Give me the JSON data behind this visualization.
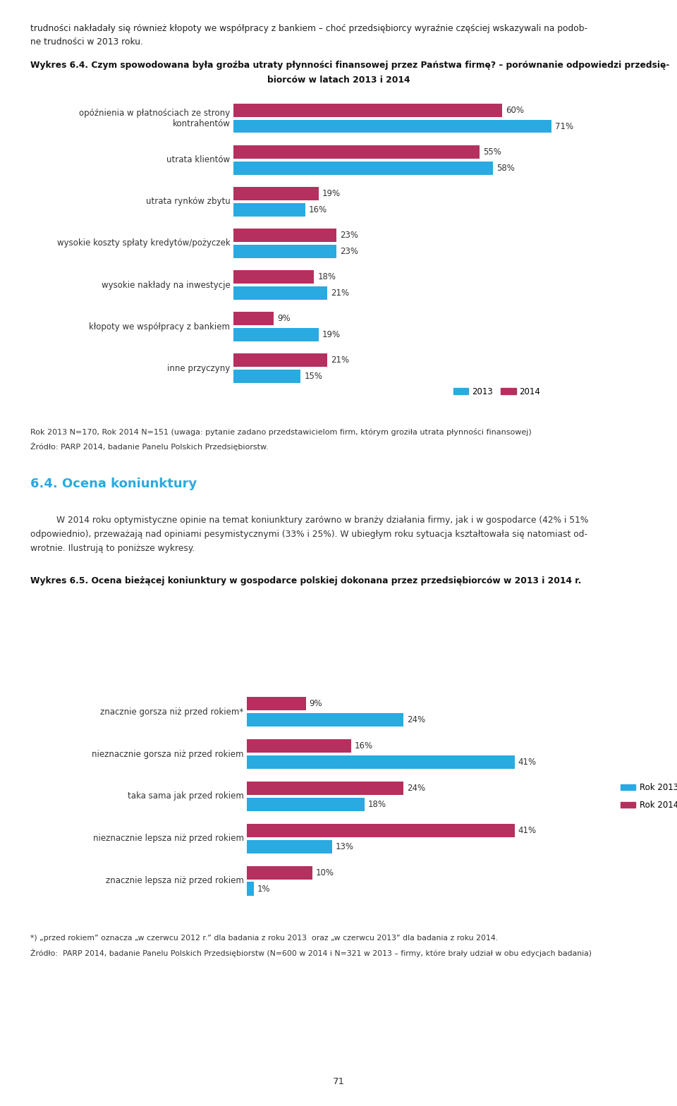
{
  "page_bg": "#ffffff",
  "top_text_line1": "trudności nakładały się również kłopoty we współpracy z bankiem – choć przedsiębiorcy wyraźnie częściej wskazywali na podob-",
  "top_text_line2": "ne trudności w 2013 roku.",
  "chart1_title_line1": "Wykres 6.4. Czym spowodowana była groźba utraty płynności finansowej przez Państwa firmę? – porównanie odpowiedzi przedsię-",
  "chart1_title_line2": "biorców w latach 2013 i 2014",
  "chart1_categories": [
    "opóźnienia w płatnościach ze strony\nkontrahentów",
    "utrata klientów",
    "utrata rynków zbytu",
    "wysokie koszty spłaty kredytów/pożyczek",
    "wysokie nakłady na inwestycje",
    "kłopoty we współpracy z bankiem",
    "inne przyczyny"
  ],
  "chart1_values_2013": [
    71,
    58,
    16,
    23,
    21,
    19,
    15
  ],
  "chart1_values_2014": [
    60,
    55,
    19,
    23,
    18,
    9,
    21
  ],
  "chart1_color_2013": "#29aae1",
  "chart1_color_2014": "#b5305e",
  "chart1_legend_2013": "2013",
  "chart1_legend_2014": "2014",
  "chart1_footnote1": "Rok 2013 N=170, Rok 2014 N=151 (uwaga: pytanie zadano przedstawicielom firm, którym groziła utrata płynności finansowej)",
  "chart1_footnote2": "Źródło: PARP 2014, badanie Panelu Polskich Przedsiębiorstw.",
  "section_title": "6.4. Ocena koniunktury",
  "section_text_line1": "W 2014 roku optymistyczne opinie na temat koniunktury zarówno w branży działania firmy, jak i w gospodarce (42% i 51%",
  "section_text_line2": "odpowiednio), przeważają nad opiniami pesymistycznymi (33% i 25%). W ubiegłym roku sytuacja kształtowała się natomiast od-",
  "section_text_line3": "wrotnie. Ilustrują to poniższe wykresy.",
  "chart2_title": "Wykres 6.5. Ocena bieżącej koniunktury w gospodarce polskiej dokonana przez przedsiębiorców w 2013 i 2014 r.",
  "chart2_categories": [
    "znacznie gorsza niż przed rokiem*",
    "nieznacznie gorsza niż przed rokiem",
    "taka sama jak przed rokiem",
    "nieznacznie lepsza niż przed rokiem",
    "znacznie lepsza niż przed rokiem"
  ],
  "chart2_values_2013": [
    24,
    41,
    18,
    13,
    1
  ],
  "chart2_values_2014": [
    9,
    16,
    24,
    41,
    10
  ],
  "chart2_color_2013": "#29aae1",
  "chart2_color_2014": "#b5305e",
  "chart2_legend_2013": "Rok 2013",
  "chart2_legend_2014": "Rok 2014",
  "chart2_footnote1": "*) „przed rokiem” oznacza „w czerwcu 2012 r.” dla badania z roku 2013  oraz „w czerwcu 2013” dla badania z roku 2014.",
  "chart2_footnote2": "Źródło:  PARP 2014, badanie Panelu Polskich Przedsiębiorstw (N=600 w 2014 i N=321 w 2013 – firmy, które brały udział w obu edycjach badania)",
  "page_number": "71"
}
